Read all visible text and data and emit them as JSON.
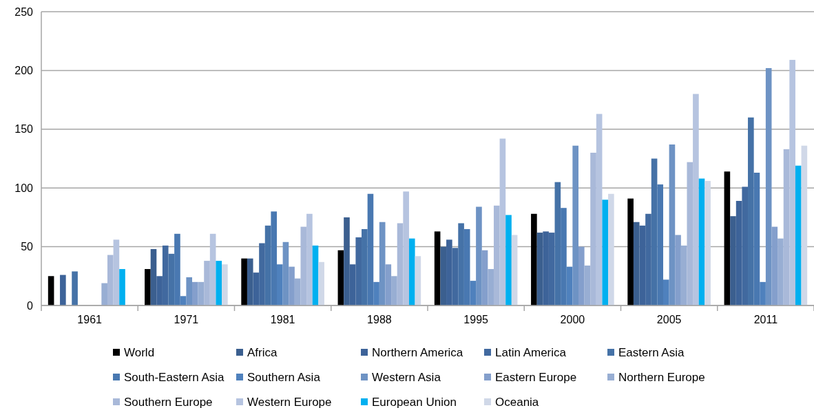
{
  "chart_data": {
    "type": "bar",
    "categories": [
      "1961",
      "1971",
      "1981",
      "1988",
      "1995",
      "2000",
      "2005",
      "2011"
    ],
    "ylim": [
      0,
      250
    ],
    "yticks": [
      0,
      50,
      100,
      150,
      200,
      250
    ],
    "grid": "y",
    "legend": "bottom",
    "series": [
      {
        "name": "World",
        "color": "#000000",
        "values": [
          25,
          31,
          40,
          47,
          63,
          78,
          91,
          114
        ]
      },
      {
        "name": "Africa",
        "color": "#3b5f8f",
        "values": [
          null,
          48,
          40,
          75,
          50,
          62,
          71,
          76
        ]
      },
      {
        "name": "Northern America",
        "color": "#3d6399",
        "values": [
          26,
          25,
          28,
          35,
          56,
          63,
          68,
          89
        ]
      },
      {
        "name": "Latin America",
        "color": "#41699f",
        "values": [
          null,
          51,
          53,
          58,
          49,
          62,
          78,
          101
        ]
      },
      {
        "name": "Eastern Asia",
        "color": "#4572a7",
        "values": [
          29,
          44,
          68,
          65,
          70,
          105,
          125,
          160
        ]
      },
      {
        "name": "South-Eastern Asia",
        "color": "#4978b1",
        "values": [
          null,
          61,
          80,
          95,
          65,
          83,
          103,
          113
        ]
      },
      {
        "name": "Southern Asia",
        "color": "#4f81bd",
        "values": [
          null,
          8,
          35,
          20,
          21,
          33,
          22,
          20
        ]
      },
      {
        "name": "Western Asia",
        "color": "#6e93c4",
        "values": [
          null,
          24,
          54,
          71,
          84,
          136,
          137,
          202
        ]
      },
      {
        "name": "Eastern Europe",
        "color": "#849fcc",
        "values": [
          null,
          20,
          33,
          35,
          47,
          50,
          60,
          67
        ]
      },
      {
        "name": "Northern Europe",
        "color": "#98aed3",
        "values": [
          19,
          20,
          23,
          25,
          31,
          34,
          51,
          57
        ]
      },
      {
        "name": "Southern Europe",
        "color": "#a9b9d9",
        "values": [
          43,
          38,
          67,
          70,
          85,
          130,
          122,
          133
        ]
      },
      {
        "name": "Western Europe",
        "color": "#b6c4e0",
        "values": [
          56,
          61,
          78,
          97,
          142,
          163,
          180,
          209
        ]
      },
      {
        "name": "European Union",
        "color": "#00b0f0",
        "values": [
          31,
          38,
          51,
          57,
          77,
          90,
          108,
          119
        ]
      },
      {
        "name": "Oceania",
        "color": "#d0d8e8",
        "values": [
          null,
          35,
          37,
          42,
          60,
          95,
          106,
          136
        ]
      }
    ]
  }
}
